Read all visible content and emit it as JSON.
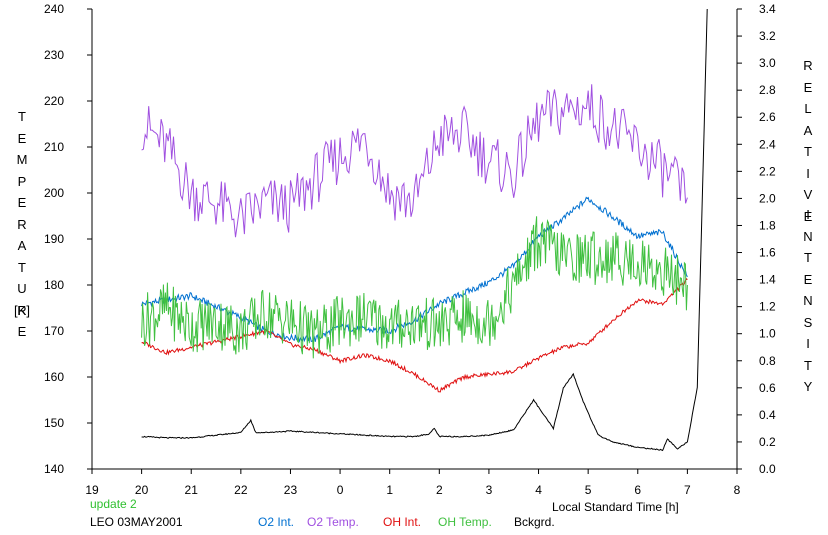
{
  "chart_data": {
    "type": "line",
    "title": "",
    "xlabel": "Local Standard Time [h]",
    "ylabel_left_letters": [
      "T",
      "E",
      "M",
      "P",
      "E",
      "R",
      "A",
      "T",
      "U",
      "R",
      "E"
    ],
    "ylabel_left_unit": "[K]",
    "ylabel_right_line1": [
      "R",
      "E",
      "L",
      "A",
      "T",
      "I",
      "V",
      "E"
    ],
    "ylabel_right_line2": [
      "I",
      "N",
      "T",
      "E",
      "N",
      "S",
      "I",
      "T",
      "Y"
    ],
    "x_tick_labels": [
      "19",
      "20",
      "21",
      "22",
      "23",
      "0",
      "1",
      "2",
      "3",
      "4",
      "5",
      "6",
      "7",
      "8"
    ],
    "xlim": [
      19,
      32
    ],
    "ylim_left": [
      140,
      240
    ],
    "ylim_right": [
      0,
      3.4
    ],
    "y_left_ticks": [
      140,
      150,
      160,
      170,
      180,
      190,
      200,
      210,
      220,
      230,
      240
    ],
    "y_right_ticks": [
      "0.0",
      "0.2",
      "0.4",
      "0.6",
      "0.8",
      "1.0",
      "1.2",
      "1.4",
      "1.6",
      "1.8",
      "2.0",
      "2.2",
      "2.4",
      "2.6",
      "2.8",
      "3.0",
      "3.2",
      "3.4"
    ],
    "grid": false,
    "series": [
      {
        "name": "O2 Int.",
        "axis": "right",
        "color": "#0070d0",
        "x": [
          20.0,
          20.5,
          21.0,
          21.5,
          22.0,
          22.5,
          23.0,
          23.5,
          24.0,
          24.5,
          25.0,
          25.5,
          26.0,
          26.5,
          27.0,
          27.5,
          28.0,
          28.5,
          29.0,
          29.5,
          30.0,
          30.5,
          31.0
        ],
        "y": [
          1.22,
          1.25,
          1.28,
          1.2,
          1.12,
          1.02,
          0.97,
          0.96,
          1.05,
          1.03,
          1.02,
          1.1,
          1.22,
          1.3,
          1.38,
          1.5,
          1.72,
          1.85,
          2.0,
          1.86,
          1.72,
          1.75,
          1.42
        ]
      },
      {
        "name": "O2 Temp.",
        "axis": "left",
        "color": "#a050e0",
        "x": [
          20.0,
          20.5,
          21.0,
          21.5,
          22.0,
          22.5,
          23.0,
          23.5,
          24.0,
          24.5,
          25.0,
          25.5,
          26.0,
          26.5,
          27.0,
          27.5,
          28.0,
          28.5,
          29.0,
          29.5,
          30.0,
          30.5,
          31.0
        ],
        "y": [
          215,
          210,
          200,
          198,
          194,
          198,
          197,
          203,
          208,
          212,
          200,
          198,
          212,
          213,
          207,
          204,
          216,
          218,
          219,
          214,
          210,
          205,
          199
        ]
      },
      {
        "name": "OH Int.",
        "axis": "right",
        "color": "#e01010",
        "x": [
          20.0,
          20.5,
          21.0,
          21.5,
          22.0,
          22.5,
          23.0,
          23.5,
          24.0,
          24.5,
          25.0,
          25.5,
          26.0,
          26.5,
          27.0,
          27.5,
          28.0,
          28.5,
          29.0,
          29.5,
          30.0,
          30.5,
          31.0
        ],
        "y": [
          0.94,
          0.86,
          0.9,
          0.94,
          0.98,
          1.02,
          0.92,
          0.88,
          0.8,
          0.84,
          0.8,
          0.7,
          0.58,
          0.68,
          0.7,
          0.72,
          0.82,
          0.9,
          0.93,
          1.1,
          1.25,
          1.22,
          1.4
        ]
      },
      {
        "name": "OH Temp.",
        "axis": "left",
        "color": "#40c040",
        "x": [
          20.0,
          20.5,
          21.0,
          21.5,
          22.0,
          22.5,
          23.0,
          23.5,
          24.0,
          24.5,
          25.0,
          25.5,
          26.0,
          26.5,
          27.0,
          27.5,
          28.0,
          28.5,
          29.0,
          29.5,
          30.0,
          30.5,
          31.0
        ],
        "y": [
          172,
          175,
          171,
          172,
          170,
          174,
          172,
          169,
          172,
          173,
          171,
          172,
          171,
          173,
          172,
          180,
          190,
          186,
          186,
          186,
          185,
          183,
          180
        ]
      },
      {
        "name": "Bckgrd.",
        "axis": "right",
        "color": "#000000",
        "x": [
          20.0,
          20.5,
          21.0,
          21.5,
          22.0,
          22.2,
          22.3,
          22.5,
          23.0,
          23.5,
          24.0,
          24.5,
          25.0,
          25.5,
          25.8,
          25.9,
          26.0,
          26.5,
          27.0,
          27.5,
          27.7,
          27.9,
          28.2,
          28.3,
          28.5,
          28.7,
          28.9,
          29.2,
          29.5,
          30.0,
          30.5,
          30.6,
          30.8,
          31.0,
          31.2,
          31.4
        ],
        "y": [
          0.24,
          0.23,
          0.23,
          0.25,
          0.27,
          0.36,
          0.27,
          0.27,
          0.28,
          0.27,
          0.26,
          0.25,
          0.24,
          0.24,
          0.26,
          0.3,
          0.24,
          0.24,
          0.25,
          0.29,
          0.4,
          0.51,
          0.35,
          0.3,
          0.6,
          0.7,
          0.5,
          0.25,
          0.2,
          0.16,
          0.14,
          0.22,
          0.15,
          0.2,
          0.6,
          3.4
        ]
      }
    ]
  },
  "footer": {
    "update": "update 2",
    "station": "LEO 03MAY2001",
    "update_color": "#30c030"
  }
}
